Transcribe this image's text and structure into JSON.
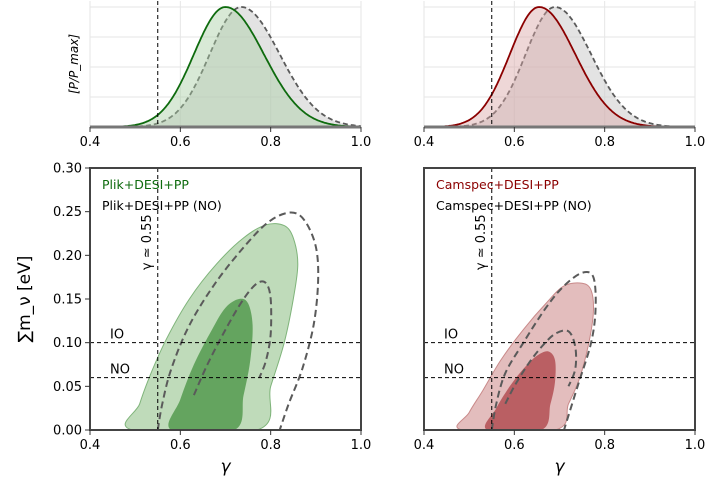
{
  "colors": {
    "plik": "#0e6b0e",
    "plik_fill": "#a9cfa3",
    "plik_fill_dark": "#5fa15a",
    "camspec": "#8b0000",
    "camspec_fill": "#d9a7a7",
    "camspec_fill_dark": "#b75a5e",
    "no_line": "#5a5a5a",
    "axis": "#444444"
  },
  "chart_data": [
    {
      "id": "plik-1d",
      "type": "line",
      "ylabel": "[P/P_max]",
      "xlim": [
        0.4,
        1.0
      ],
      "ylim": [
        0,
        1.05
      ],
      "xticks": [
        0.4,
        0.6,
        0.8,
        1.0
      ],
      "xtick_labels": [
        "0.4",
        "0.6",
        "0.8",
        "1.0"
      ],
      "grid": true,
      "reference_line": {
        "x": 0.55,
        "style": "dashed"
      },
      "series": [
        {
          "name": "Plik+DESI+PP",
          "peak": 0.7,
          "sigma_left": 0.07,
          "sigma_right": 0.085,
          "style": "solid",
          "color": "plik"
        },
        {
          "name": "Plik+DESI+PP (NO)",
          "peak": 0.735,
          "sigma_left": 0.07,
          "sigma_right": 0.085,
          "style": "dashed",
          "color": "no_line"
        }
      ]
    },
    {
      "id": "camspec-1d",
      "type": "line",
      "xlim": [
        0.4,
        1.0
      ],
      "ylim": [
        0,
        1.05
      ],
      "xticks": [
        0.4,
        0.6,
        0.8,
        1.0
      ],
      "xtick_labels": [
        "0.4",
        "0.6",
        "0.8",
        "1.0"
      ],
      "grid": true,
      "reference_line": {
        "x": 0.55,
        "style": "dashed"
      },
      "series": [
        {
          "name": "Camspec+DESI+PP",
          "peak": 0.655,
          "sigma_left": 0.065,
          "sigma_right": 0.08,
          "style": "solid",
          "color": "camspec"
        },
        {
          "name": "Camspec+DESI+PP (NO)",
          "peak": 0.69,
          "sigma_left": 0.065,
          "sigma_right": 0.08,
          "style": "dashed",
          "color": "no_line"
        }
      ]
    },
    {
      "id": "plik-2d",
      "type": "contour",
      "xlabel": "γ",
      "ylabel": "∑m_ν [eV]",
      "xlim": [
        0.4,
        1.0
      ],
      "ylim": [
        0.0,
        0.3
      ],
      "xticks": [
        0.4,
        0.6,
        0.8,
        1.0
      ],
      "xtick_labels": [
        "0.4",
        "0.6",
        "0.8",
        "1.0"
      ],
      "yticks": [
        0.0,
        0.05,
        0.1,
        0.15,
        0.2,
        0.25,
        0.3
      ],
      "ytick_labels": [
        "0.00",
        "0.05",
        "0.10",
        "0.15",
        "0.20",
        "0.25",
        "0.30"
      ],
      "vline": {
        "x": 0.55,
        "label": "γ ≃ 0.55"
      },
      "hlines": [
        {
          "y": 0.1,
          "label": "IO"
        },
        {
          "y": 0.06,
          "label": "NO"
        }
      ],
      "legend": [
        "Plik+DESI+PP",
        "Plik+DESI+PP (NO)"
      ],
      "legend_location": "top-left",
      "contours": {
        "filled_2sigma": [
          [
            0.495,
            0.0
          ],
          [
            0.51,
            0.03
          ],
          [
            0.535,
            0.065
          ],
          [
            0.57,
            0.105
          ],
          [
            0.62,
            0.15
          ],
          [
            0.68,
            0.19
          ],
          [
            0.74,
            0.22
          ],
          [
            0.79,
            0.235
          ],
          [
            0.83,
            0.234
          ],
          [
            0.85,
            0.22
          ],
          [
            0.86,
            0.19
          ],
          [
            0.85,
            0.15
          ],
          [
            0.83,
            0.1
          ],
          [
            0.8,
            0.05
          ],
          [
            0.77,
            0.0
          ]
        ],
        "filled_1sigma": [
          [
            0.58,
            0.0
          ],
          [
            0.6,
            0.035
          ],
          [
            0.63,
            0.075
          ],
          [
            0.67,
            0.115
          ],
          [
            0.7,
            0.14
          ],
          [
            0.73,
            0.15
          ],
          [
            0.75,
            0.145
          ],
          [
            0.76,
            0.12
          ],
          [
            0.755,
            0.08
          ],
          [
            0.74,
            0.04
          ],
          [
            0.72,
            0.0
          ]
        ],
        "dashed_2sigma": [
          [
            0.55,
            0.0
          ],
          [
            0.56,
            0.03
          ],
          [
            0.58,
            0.07
          ],
          [
            0.62,
            0.12
          ],
          [
            0.68,
            0.17
          ],
          [
            0.75,
            0.215
          ],
          [
            0.8,
            0.24
          ],
          [
            0.845,
            0.249
          ],
          [
            0.875,
            0.24
          ],
          [
            0.9,
            0.21
          ],
          [
            0.905,
            0.17
          ],
          [
            0.895,
            0.12
          ],
          [
            0.87,
            0.07
          ],
          [
            0.84,
            0.03
          ],
          [
            0.82,
            0.0
          ]
        ],
        "dashed_1sigma": [
          [
            0.63,
            0.04
          ],
          [
            0.66,
            0.075
          ],
          [
            0.7,
            0.115
          ],
          [
            0.74,
            0.15
          ],
          [
            0.77,
            0.168
          ],
          [
            0.79,
            0.168
          ],
          [
            0.8,
            0.15
          ],
          [
            0.8,
            0.11
          ],
          [
            0.79,
            0.08
          ],
          [
            0.775,
            0.06
          ]
        ]
      }
    },
    {
      "id": "camspec-2d",
      "type": "contour",
      "xlabel": "γ",
      "xlim": [
        0.4,
        1.0
      ],
      "ylim": [
        0.0,
        0.3
      ],
      "xticks": [
        0.4,
        0.6,
        0.8,
        1.0
      ],
      "xtick_labels": [
        "0.4",
        "0.6",
        "0.8",
        "1.0"
      ],
      "vline": {
        "x": 0.55,
        "label": "γ ≃ 0.55"
      },
      "hlines": [
        {
          "y": 0.1,
          "label": "IO"
        },
        {
          "y": 0.06,
          "label": "NO"
        }
      ],
      "legend": [
        "Camspec+DESI+PP",
        "Camspec+DESI+PP (NO)"
      ],
      "legend_location": "top-left",
      "contours": {
        "filled_2sigma": [
          [
            0.485,
            0.0
          ],
          [
            0.5,
            0.02
          ],
          [
            0.53,
            0.045
          ],
          [
            0.57,
            0.08
          ],
          [
            0.62,
            0.115
          ],
          [
            0.67,
            0.145
          ],
          [
            0.71,
            0.165
          ],
          [
            0.75,
            0.168
          ],
          [
            0.77,
            0.16
          ],
          [
            0.775,
            0.135
          ],
          [
            0.765,
            0.1
          ],
          [
            0.745,
            0.06
          ],
          [
            0.72,
            0.03
          ],
          [
            0.69,
            0.0
          ]
        ],
        "filled_1sigma": [
          [
            0.54,
            0.0
          ],
          [
            0.56,
            0.025
          ],
          [
            0.59,
            0.05
          ],
          [
            0.62,
            0.07
          ],
          [
            0.65,
            0.085
          ],
          [
            0.675,
            0.09
          ],
          [
            0.69,
            0.08
          ],
          [
            0.69,
            0.055
          ],
          [
            0.68,
            0.03
          ],
          [
            0.66,
            0.0
          ]
        ],
        "dashed_2sigma": [
          [
            0.55,
            0.0
          ],
          [
            0.56,
            0.03
          ],
          [
            0.58,
            0.065
          ],
          [
            0.62,
            0.1
          ],
          [
            0.67,
            0.14
          ],
          [
            0.71,
            0.165
          ],
          [
            0.75,
            0.18
          ],
          [
            0.775,
            0.175
          ],
          [
            0.78,
            0.14
          ],
          [
            0.77,
            0.1
          ],
          [
            0.74,
            0.05
          ],
          [
            0.71,
            0.0
          ]
        ],
        "dashed_1sigma": [
          [
            0.58,
            0.03
          ],
          [
            0.6,
            0.05
          ],
          [
            0.63,
            0.075
          ],
          [
            0.66,
            0.095
          ],
          [
            0.69,
            0.11
          ],
          [
            0.72,
            0.113
          ],
          [
            0.735,
            0.095
          ],
          [
            0.735,
            0.07
          ],
          [
            0.72,
            0.05
          ]
        ]
      }
    }
  ]
}
